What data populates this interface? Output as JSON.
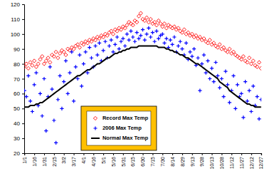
{
  "chart_data": {
    "type": "scatter",
    "categories": [
      "1/1",
      null,
      null,
      null,
      null,
      "1/16",
      null,
      null,
      null,
      null,
      "1/31",
      null,
      null,
      null,
      null,
      "2/15",
      null,
      null,
      null,
      null,
      "3/2",
      null,
      null,
      null,
      null,
      "3/17",
      null,
      null,
      null,
      null,
      "4/1",
      null,
      null,
      null,
      null,
      "4/16",
      null,
      null,
      null,
      null,
      "5/1",
      null,
      null,
      null,
      null,
      "5/16",
      null,
      null,
      null,
      null,
      "5/31",
      null,
      null,
      null,
      null,
      "6/15",
      null,
      null,
      null,
      null,
      "6/30",
      null,
      null,
      null,
      null,
      "7/15",
      null,
      null,
      null,
      null,
      "7/30",
      null,
      null,
      null,
      null,
      "8/14",
      null,
      null,
      null,
      null,
      "8/29",
      null,
      null,
      null,
      null,
      "9/13",
      null,
      null,
      null,
      null,
      "9/28",
      null,
      null,
      null,
      null,
      "10/13",
      null,
      null,
      null,
      null,
      "10/28",
      null,
      null,
      null,
      null,
      "11/12",
      null,
      null,
      null,
      null,
      "11/27",
      null,
      null,
      null,
      null,
      "12/12",
      null,
      null,
      null,
      null,
      "12/27"
    ],
    "series": [
      {
        "name": "Record Max Temp",
        "color": "#ff0000",
        "type": "scatter",
        "marker": "diamond",
        "values": [
          78,
          80,
          77,
          81,
          79,
          82,
          78,
          80,
          83,
          85,
          80,
          82,
          84,
          81,
          86,
          85,
          88,
          84,
          87,
          89,
          88,
          86,
          90,
          89,
          91,
          90,
          92,
          93,
          91,
          94,
          93,
          95,
          94,
          96,
          95,
          97,
          96,
          98,
          97,
          99,
          98,
          100,
          99,
          101,
          102,
          100,
          103,
          102,
          104,
          103,
          105,
          104,
          106,
          108,
          107,
          106,
          109,
          108,
          112,
          114,
          110,
          109,
          111,
          108,
          110,
          107,
          108,
          106,
          109,
          107,
          105,
          107,
          104,
          106,
          105,
          104,
          105,
          103,
          104,
          102,
          101,
          103,
          100,
          101,
          99,
          100,
          98,
          99,
          97,
          98,
          96,
          97,
          95,
          94,
          96,
          93,
          94,
          92,
          91,
          93,
          90,
          91,
          89,
          88,
          90,
          87,
          88,
          86,
          85,
          84,
          83,
          85,
          82,
          81,
          84,
          80,
          82,
          79,
          78,
          81,
          77
        ]
      },
      {
        "name": "2006 Max Temp",
        "color": "#0000ff",
        "type": "scatter",
        "marker": "plus",
        "values": [
          62,
          58,
          72,
          55,
          48,
          66,
          74,
          52,
          60,
          45,
          70,
          35,
          58,
          78,
          63,
          42,
          27,
          56,
          72,
          50,
          68,
          82,
          60,
          74,
          88,
          55,
          78,
          70,
          86,
          65,
          80,
          88,
          74,
          91,
          84,
          78,
          92,
          86,
          94,
          82,
          89,
          95,
          84,
          92,
          96,
          88,
          93,
          98,
          90,
          95,
          97,
          92,
          100,
          96,
          102,
          98,
          95,
          101,
          97,
          99,
          103,
          96,
          100,
          104,
          98,
          101,
          95,
          102,
          97,
          99,
          100,
          94,
          97,
          91,
          96,
          93,
          98,
          88,
          92,
          95,
          90,
          86,
          94,
          83,
          88,
          85,
          90,
          79,
          84,
          62,
          80,
          86,
          74,
          82,
          70,
          77,
          68,
          81,
          72,
          64,
          70,
          58,
          75,
          66,
          54,
          62,
          72,
          50,
          66,
          58,
          60,
          44,
          68,
          55,
          62,
          48,
          65,
          52,
          58,
          43,
          56
        ]
      },
      {
        "name": "Normal Max Temp",
        "color": "#000000",
        "type": "line",
        "line_style": "solid",
        "values": [
          51,
          51,
          51,
          52,
          52,
          52,
          53,
          53,
          54,
          54,
          55,
          56,
          57,
          58,
          59,
          60,
          61,
          62,
          63,
          64,
          65,
          66,
          67,
          68,
          69,
          70,
          71,
          72,
          72,
          73,
          74,
          75,
          76,
          76,
          77,
          78,
          79,
          80,
          80,
          81,
          82,
          83,
          84,
          84,
          85,
          86,
          87,
          87,
          88,
          88,
          89,
          89,
          90,
          90,
          91,
          91,
          91,
          91,
          92,
          92,
          92,
          92,
          92,
          92,
          92,
          92,
          92,
          92,
          91,
          91,
          91,
          91,
          90,
          90,
          89,
          89,
          88,
          88,
          87,
          86,
          86,
          85,
          84,
          84,
          83,
          82,
          81,
          80,
          80,
          79,
          78,
          77,
          76,
          75,
          74,
          73,
          72,
          71,
          70,
          68,
          67,
          66,
          65,
          64,
          62,
          61,
          60,
          59,
          58,
          57,
          56,
          55,
          54,
          53,
          53,
          52,
          52,
          51,
          51,
          51,
          51
        ]
      }
    ],
    "ylim": [
      20,
      120
    ],
    "yticks": [
      20,
      30,
      40,
      50,
      60,
      70,
      80,
      90,
      100,
      110,
      120
    ],
    "grid": false,
    "legend": "bottom"
  }
}
